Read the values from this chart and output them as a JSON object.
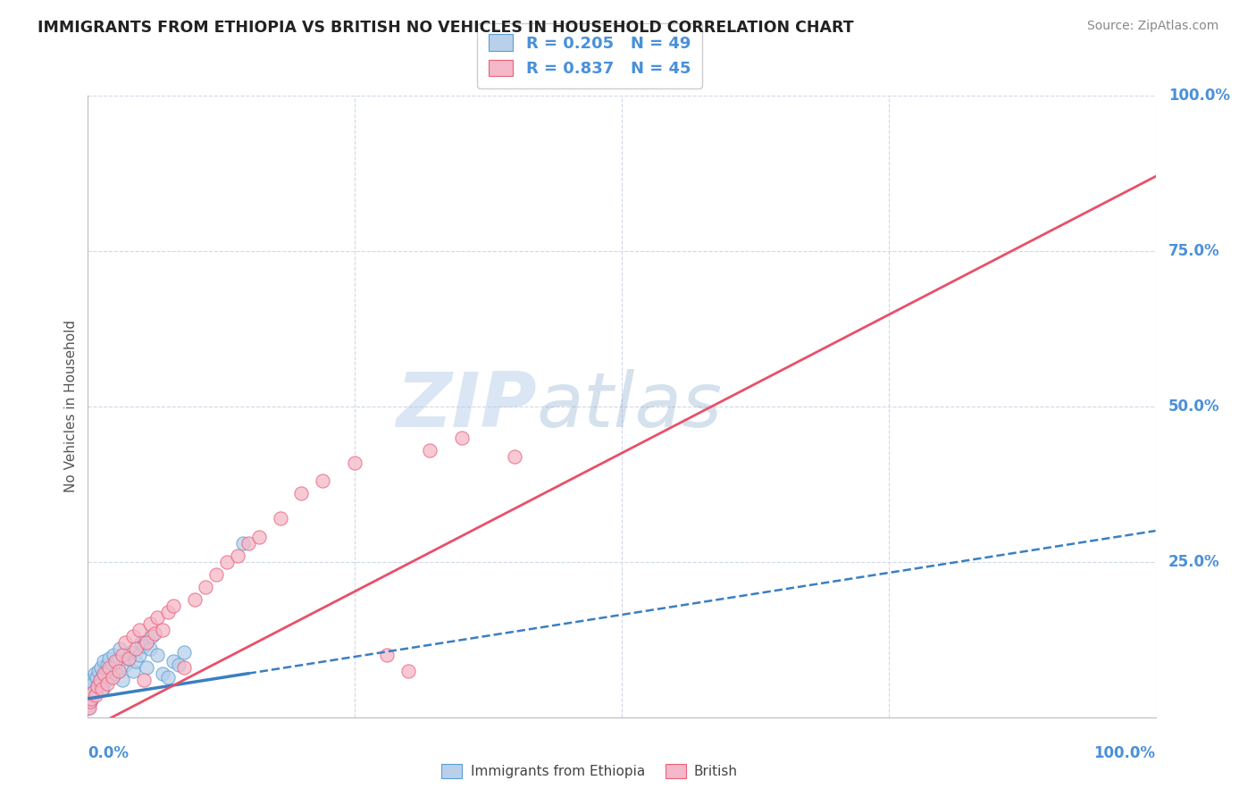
{
  "title": "IMMIGRANTS FROM ETHIOPIA VS BRITISH NO VEHICLES IN HOUSEHOLD CORRELATION CHART",
  "source": "Source: ZipAtlas.com",
  "ylabel": "No Vehicles in Household",
  "r_blue": 0.205,
  "n_blue": 49,
  "r_pink": 0.837,
  "n_pink": 45,
  "blue_color": "#b8d0ea",
  "pink_color": "#f5b8c8",
  "blue_edge_color": "#5a9fd4",
  "pink_edge_color": "#e8607a",
  "blue_line_color": "#3a7fc1",
  "pink_line_color": "#e8506a",
  "watermark_zip": "ZIP",
  "watermark_atlas": "atlas",
  "background_color": "#ffffff",
  "grid_color": "#d0d8e8",
  "title_color": "#222222",
  "axis_label_color": "#4a90d9",
  "source_color": "#888888",
  "ylabel_color": "#555555",
  "blue_scatter_x": [
    0.1,
    0.15,
    0.2,
    0.25,
    0.3,
    0.35,
    0.4,
    0.5,
    0.6,
    0.7,
    0.8,
    0.9,
    1.0,
    1.1,
    1.2,
    1.3,
    1.4,
    1.5,
    1.6,
    1.7,
    1.8,
    1.9,
    2.0,
    2.2,
    2.4,
    2.6,
    2.8,
    3.0,
    3.2,
    3.5,
    3.8,
    4.0,
    4.2,
    4.5,
    4.8,
    5.0,
    5.2,
    5.5,
    5.8,
    6.0,
    6.5,
    7.0,
    7.5,
    8.0,
    8.5,
    9.0,
    0.05,
    0.08,
    14.5
  ],
  "blue_scatter_y": [
    3.5,
    4.0,
    2.5,
    5.0,
    3.0,
    4.5,
    6.0,
    5.5,
    7.0,
    4.0,
    6.5,
    5.0,
    7.5,
    5.5,
    8.0,
    6.5,
    4.5,
    9.0,
    7.0,
    6.0,
    8.5,
    7.5,
    9.5,
    8.0,
    10.0,
    7.0,
    9.0,
    11.0,
    6.0,
    8.5,
    9.5,
    10.5,
    7.5,
    9.0,
    10.0,
    12.0,
    11.5,
    8.0,
    11.0,
    13.0,
    10.0,
    7.0,
    6.5,
    9.0,
    8.5,
    10.5,
    2.0,
    1.5,
    28.0
  ],
  "pink_scatter_x": [
    0.1,
    0.2,
    0.3,
    0.5,
    0.7,
    0.9,
    1.1,
    1.3,
    1.5,
    1.8,
    2.0,
    2.3,
    2.6,
    2.9,
    3.2,
    3.5,
    3.8,
    4.2,
    4.5,
    4.8,
    5.2,
    5.5,
    5.8,
    6.2,
    6.5,
    7.0,
    7.5,
    8.0,
    9.0,
    10.0,
    11.0,
    12.0,
    13.0,
    14.0,
    15.0,
    16.0,
    18.0,
    20.0,
    22.0,
    25.0,
    28.0,
    30.0,
    32.0,
    35.0,
    40.0
  ],
  "pink_scatter_y": [
    1.5,
    2.5,
    3.0,
    4.0,
    3.5,
    5.0,
    6.0,
    4.5,
    7.0,
    5.5,
    8.0,
    6.5,
    9.0,
    7.5,
    10.0,
    12.0,
    9.5,
    13.0,
    11.0,
    14.0,
    6.0,
    12.0,
    15.0,
    13.5,
    16.0,
    14.0,
    17.0,
    18.0,
    8.0,
    19.0,
    21.0,
    23.0,
    25.0,
    26.0,
    28.0,
    29.0,
    32.0,
    36.0,
    38.0,
    41.0,
    10.0,
    7.5,
    43.0,
    45.0,
    42.0
  ],
  "blue_line_x0": 0.0,
  "blue_line_y0": 3.0,
  "blue_line_x1": 100.0,
  "blue_line_y1": 30.0,
  "blue_solid_x_end": 15.0,
  "pink_line_x0": 0.0,
  "pink_line_y0": -2.0,
  "pink_line_x1": 100.0,
  "pink_line_y1": 87.0,
  "xmin": 0.0,
  "xmax": 100.0,
  "ymin": 0.0,
  "ymax": 100.0
}
